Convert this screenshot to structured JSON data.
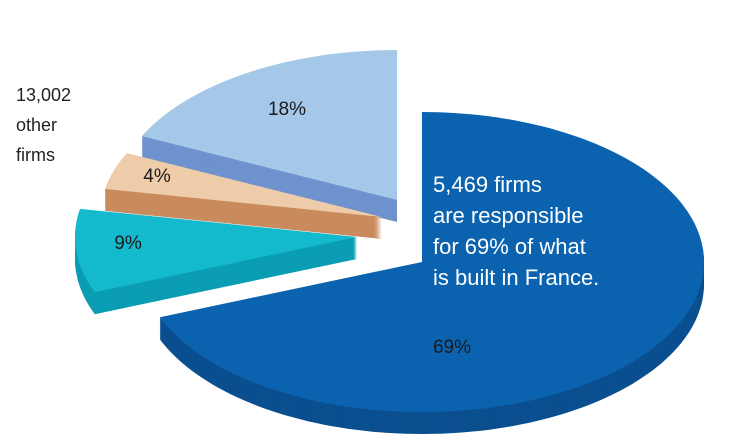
{
  "chart_data": {
    "type": "pie",
    "categories": [
      null,
      null,
      null,
      null
    ],
    "values": [
      69,
      9,
      4,
      18
    ],
    "value_labels": [
      "69%",
      "9%",
      "4%",
      "18%"
    ],
    "colors": [
      "#0b63b0",
      "#13b9cc",
      "#efcca9",
      "#a5c8e8"
    ],
    "side_colors": [
      "#0a4f8f",
      "#0a9db3",
      "#c98b5e",
      "#6e92cc"
    ],
    "annotations": [
      [
        "13,002",
        "other",
        "firms"
      ],
      [
        "5,469 firms",
        "are responsible",
        "for 69% of what",
        "is built in France."
      ]
    ]
  }
}
